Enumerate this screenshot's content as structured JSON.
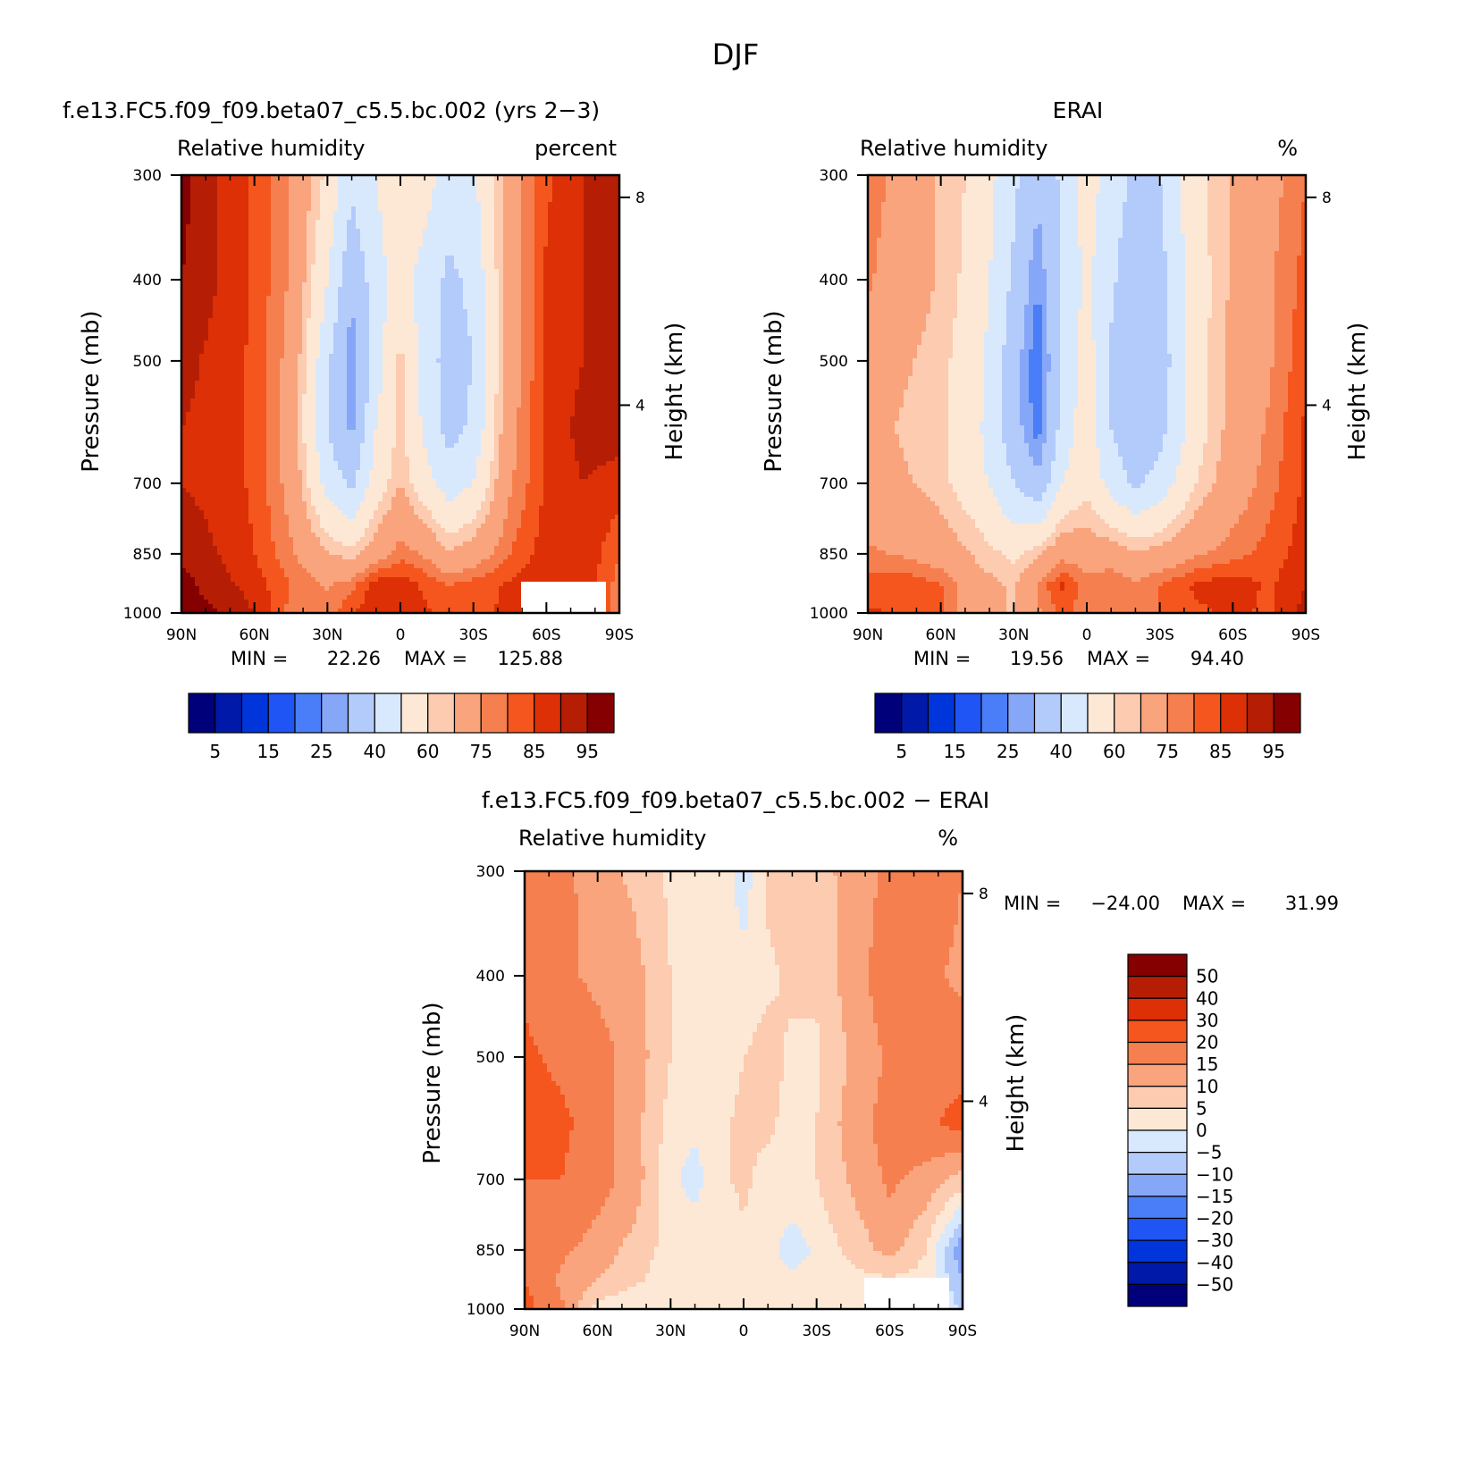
{
  "figure_title": "DJF",
  "chart_data": [
    {
      "type": "heatmap",
      "id": "model",
      "title": "f.e13.FC5.f09_f09.beta07_c5.5.bc.002 (yrs 2−3)",
      "left_string": "Relative humidity",
      "right_string": "percent",
      "xlabel": "",
      "ylabel": "Pressure (mb)",
      "y2label": "Height (km)",
      "x_tick_labels": [
        "90N",
        "60N",
        "30N",
        "0",
        "30S",
        "60S",
        "90S"
      ],
      "x_ticks": [
        90,
        60,
        30,
        0,
        -30,
        -60,
        -90
      ],
      "xlim": [
        90,
        -90
      ],
      "y_tick_labels": [
        "300",
        "400",
        "500",
        "700",
        "850",
        "1000"
      ],
      "y_ticks": [
        300,
        400,
        500,
        700,
        850,
        1000
      ],
      "ylim": [
        300,
        1000
      ],
      "y_scale": "log-pressure",
      "y2_tick_labels": [
        "8",
        "4"
      ],
      "y2_ticks": [
        8,
        4
      ],
      "min_label": "MIN =",
      "min_value": "22.26",
      "max_label": "MAX =",
      "max_value": "125.88",
      "missing_region": {
        "lat_range": [
          -50,
          -85
        ],
        "p_range": [
          920,
          1000
        ]
      },
      "color_levels": [
        5,
        10,
        15,
        20,
        25,
        30,
        40,
        50,
        60,
        65,
        75,
        80,
        85,
        90,
        95
      ],
      "colorbar_tick_labels": [
        "5",
        "15",
        "25",
        "40",
        "60",
        "75",
        "85",
        "95"
      ],
      "colorbar_orientation": "horizontal",
      "field": {
        "lat": [
          90,
          75,
          60,
          45,
          30,
          20,
          10,
          0,
          -10,
          -20,
          -30,
          -45,
          -60,
          -75,
          -90
        ],
        "pressure": [
          300,
          400,
          500,
          600,
          700,
          850,
          925,
          1000
        ],
        "values": [
          [
            97,
            90,
            84,
            74,
            58,
            42,
            50,
            58,
            55,
            44,
            48,
            70,
            84,
            90,
            95
          ],
          [
            95,
            90,
            84,
            74,
            50,
            32,
            45,
            56,
            45,
            38,
            42,
            70,
            86,
            90,
            92
          ],
          [
            92,
            88,
            84,
            72,
            42,
            25,
            45,
            62,
            45,
            36,
            40,
            70,
            86,
            90,
            92
          ],
          [
            90,
            88,
            84,
            70,
            40,
            28,
            50,
            62,
            48,
            36,
            42,
            72,
            86,
            92,
            92
          ],
          [
            90,
            88,
            84,
            72,
            46,
            38,
            55,
            65,
            54,
            45,
            50,
            74,
            86,
            90,
            88
          ],
          [
            94,
            90,
            85,
            76,
            66,
            62,
            70,
            78,
            74,
            66,
            70,
            80,
            88,
            90,
            80
          ],
          [
            97,
            92,
            88,
            80,
            74,
            78,
            88,
            88,
            84,
            80,
            82,
            86,
            90,
            88,
            78
          ],
          [
            99,
            95,
            90,
            78,
            78,
            84,
            90,
            90,
            86,
            82,
            84,
            86,
            88,
            86,
            78
          ]
        ]
      }
    },
    {
      "type": "heatmap",
      "id": "obs",
      "title": "ERAI",
      "left_string": "Relative humidity",
      "right_string": "%",
      "xlabel": "",
      "ylabel": "Pressure (mb)",
      "y2label": "Height (km)",
      "x_tick_labels": [
        "90N",
        "60N",
        "30N",
        "0",
        "30S",
        "60S",
        "90S"
      ],
      "x_ticks": [
        90,
        60,
        30,
        0,
        -30,
        -60,
        -90
      ],
      "xlim": [
        90,
        -90
      ],
      "y_tick_labels": [
        "300",
        "400",
        "500",
        "700",
        "850",
        "1000"
      ],
      "y_ticks": [
        300,
        400,
        500,
        700,
        850,
        1000
      ],
      "ylim": [
        300,
        1000
      ],
      "y_scale": "log-pressure",
      "y2_tick_labels": [
        "8",
        "4"
      ],
      "y2_ticks": [
        8,
        4
      ],
      "min_label": "MIN =",
      "min_value": "19.56",
      "max_label": "MAX =",
      "max_value": "94.40",
      "color_levels": [
        5,
        10,
        15,
        20,
        25,
        30,
        40,
        50,
        60,
        65,
        75,
        80,
        85,
        90,
        95
      ],
      "colorbar_tick_labels": [
        "5",
        "15",
        "25",
        "40",
        "60",
        "75",
        "85",
        "95"
      ],
      "colorbar_orientation": "horizontal",
      "field": {
        "lat": [
          90,
          75,
          60,
          45,
          30,
          20,
          10,
          0,
          -10,
          -20,
          -30,
          -45,
          -60,
          -75,
          -90
        ],
        "pressure": [
          300,
          400,
          500,
          600,
          700,
          850,
          925,
          1000
        ],
        "values": [
          [
            78,
            72,
            64,
            58,
            42,
            32,
            42,
            55,
            45,
            38,
            40,
            58,
            66,
            72,
            80
          ],
          [
            76,
            70,
            64,
            56,
            38,
            25,
            42,
            52,
            42,
            32,
            36,
            56,
            66,
            74,
            82
          ],
          [
            70,
            66,
            62,
            54,
            34,
            20,
            42,
            55,
            38,
            30,
            34,
            56,
            68,
            74,
            84
          ],
          [
            68,
            64,
            62,
            52,
            34,
            22,
            44,
            56,
            40,
            32,
            36,
            56,
            68,
            76,
            86
          ],
          [
            70,
            66,
            62,
            54,
            40,
            32,
            50,
            58,
            46,
            38,
            44,
            60,
            70,
            78,
            86
          ],
          [
            76,
            74,
            70,
            64,
            58,
            64,
            72,
            70,
            70,
            66,
            68,
            74,
            78,
            82,
            88
          ],
          [
            82,
            84,
            80,
            68,
            64,
            76,
            86,
            78,
            80,
            76,
            80,
            86,
            88,
            84,
            90
          ],
          [
            86,
            84,
            82,
            68,
            64,
            74,
            82,
            76,
            78,
            76,
            80,
            84,
            86,
            84,
            92
          ]
        ]
      }
    },
    {
      "type": "heatmap",
      "id": "diff",
      "title": "f.e13.FC5.f09_f09.beta07_c5.5.bc.002 − ERAI",
      "left_string": "Relative humidity",
      "right_string": "%",
      "xlabel": "",
      "ylabel": "Pressure (mb)",
      "y2label": "Height (km)",
      "x_tick_labels": [
        "90N",
        "60N",
        "30N",
        "0",
        "30S",
        "60S",
        "90S"
      ],
      "x_ticks": [
        90,
        60,
        30,
        0,
        -30,
        -60,
        -90
      ],
      "xlim": [
        90,
        -90
      ],
      "y_tick_labels": [
        "300",
        "400",
        "500",
        "700",
        "850",
        "1000"
      ],
      "y_ticks": [
        300,
        400,
        500,
        700,
        850,
        1000
      ],
      "ylim": [
        300,
        1000
      ],
      "y_scale": "log-pressure",
      "y2_tick_labels": [
        "8",
        "4"
      ],
      "y2_ticks": [
        8,
        4
      ],
      "min_label": "MIN =",
      "min_value": "−24.00",
      "max_label": "MAX =",
      "max_value": "31.99",
      "missing_region": {
        "lat_range": [
          -50,
          -85
        ],
        "p_range": [
          920,
          1000
        ]
      },
      "color_levels": [
        -50,
        -40,
        -30,
        -20,
        -15,
        -10,
        -5,
        0,
        5,
        10,
        15,
        20,
        30,
        40,
        50
      ],
      "colorbar_tick_labels": [
        "50",
        "40",
        "30",
        "20",
        "15",
        "10",
        "5",
        "0",
        "−5",
        "−10",
        "−15",
        "−20",
        "−30",
        "−40",
        "−50"
      ],
      "colorbar_orientation": "vertical",
      "field": {
        "lat": [
          90,
          75,
          60,
          45,
          30,
          20,
          10,
          0,
          -10,
          -20,
          -30,
          -45,
          -60,
          -75,
          -90
        ],
        "pressure": [
          300,
          400,
          500,
          600,
          700,
          850,
          925,
          1000
        ],
        "values": [
          [
            19,
            17,
            12,
            9,
            4,
            3,
            4,
            -3,
            6,
            8,
            9,
            11,
            17,
            18,
            15
          ],
          [
            19,
            16,
            14,
            12,
            5,
            3,
            3,
            2,
            4,
            6,
            6,
            13,
            18,
            16,
            14
          ],
          [
            21,
            19,
            17,
            13,
            5,
            2,
            3,
            5,
            7,
            4,
            4,
            11,
            16,
            17,
            18
          ],
          [
            22,
            21,
            18,
            12,
            3,
            1,
            4,
            6,
            6,
            3,
            5,
            13,
            17,
            19,
            22
          ],
          [
            20,
            20,
            17,
            13,
            1,
            -2,
            4,
            6,
            3,
            4,
            5,
            11,
            16,
            13,
            8
          ],
          [
            18,
            16,
            13,
            8,
            3,
            4,
            1,
            4,
            2,
            -3,
            1,
            7,
            12,
            5,
            -15
          ],
          [
            20,
            14,
            10,
            6,
            2,
            3,
            2,
            5,
            3,
            2,
            2,
            3,
            4,
            3,
            -10
          ],
          [
            22,
            16,
            3,
            0,
            3,
            5,
            3,
            4,
            3,
            4,
            3,
            2,
            3,
            2,
            -6
          ]
        ]
      }
    }
  ]
}
